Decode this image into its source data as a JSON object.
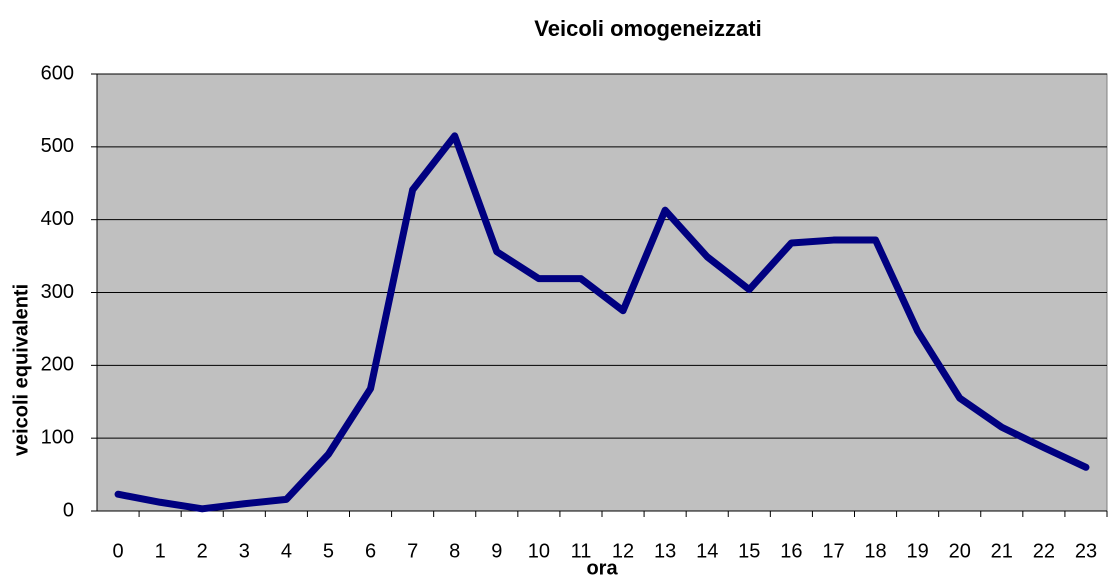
{
  "chart_data": {
    "type": "line",
    "title": "Veicoli omogeneizzati",
    "x_label": "ora",
    "y_label": "veicoli equivalenti",
    "categories": [
      0,
      1,
      2,
      3,
      4,
      5,
      6,
      7,
      8,
      9,
      10,
      11,
      12,
      13,
      14,
      15,
      16,
      17,
      18,
      19,
      20,
      21,
      22,
      23
    ],
    "series": [
      {
        "name": "Veicoli omogeneizzati",
        "color": "#000080",
        "values": [
          23,
          12,
          3,
          10,
          16,
          78,
          168,
          441,
          515,
          356,
          319,
          319,
          275,
          413,
          349,
          304,
          368,
          372,
          372,
          247,
          155,
          115,
          87,
          60
        ]
      }
    ],
    "ylim": [
      0,
      600
    ],
    "yticks": [
      0,
      100,
      200,
      300,
      400,
      500,
      600
    ],
    "grid": true,
    "legend": false
  }
}
